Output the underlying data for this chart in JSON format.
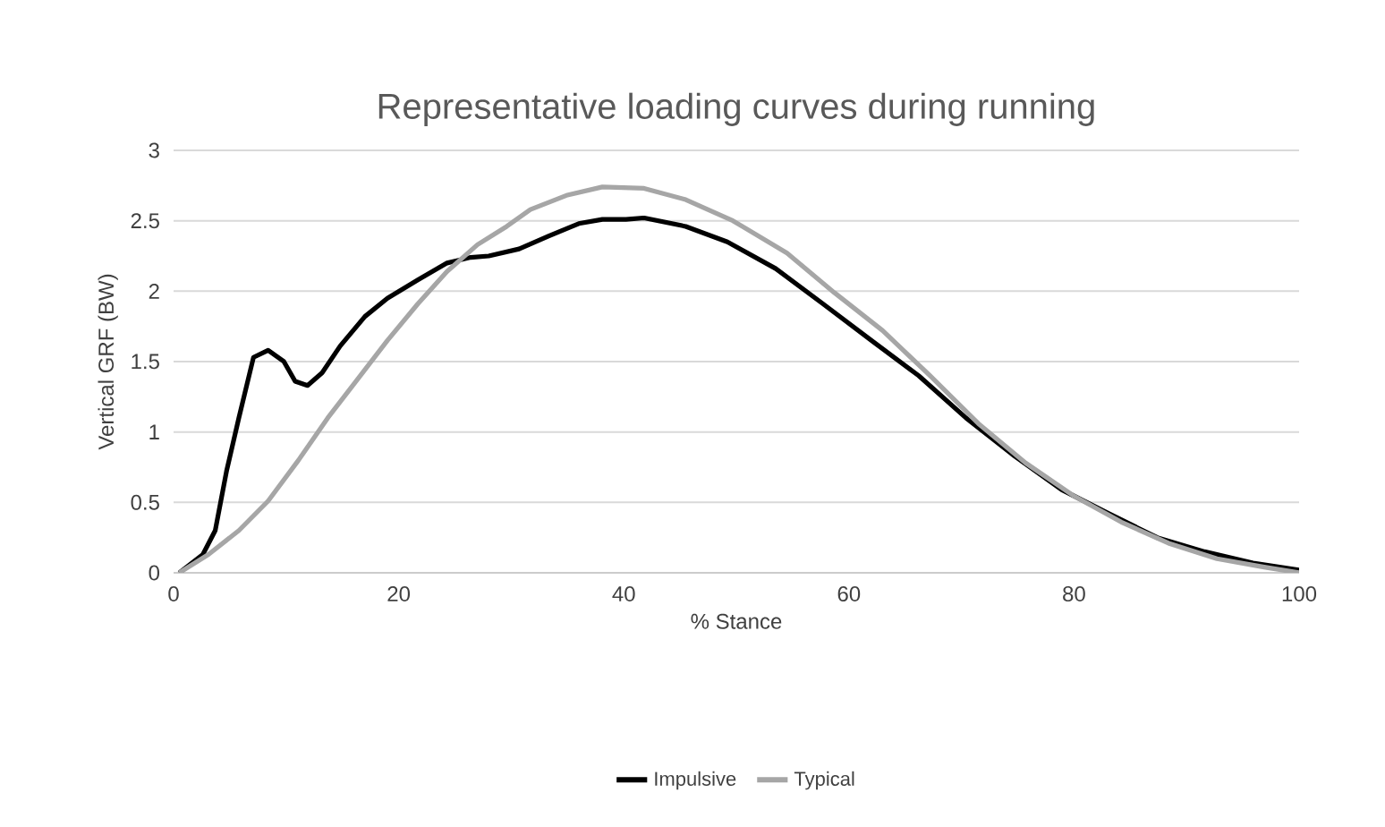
{
  "chart_data": {
    "type": "line",
    "title": "Representative loading curves during running",
    "xlabel": "% Stance",
    "ylabel": "Vertical GRF (BW)",
    "xlim": [
      0,
      100
    ],
    "ylim": [
      0,
      3
    ],
    "xticks": [
      0,
      20,
      40,
      60,
      80,
      100
    ],
    "yticks": [
      0,
      0.5,
      1,
      1.5,
      2,
      2.5,
      3
    ],
    "grid": "y",
    "legend": "bottom",
    "series": [
      {
        "name": "Impulsive",
        "color": "#000000",
        "x": [
          0.5,
          2.6,
          3.7,
          4.7,
          5.8,
          7.1,
          8.4,
          9.8,
          10.8,
          11.9,
          13.2,
          14.8,
          17.0,
          19.0,
          21.7,
          24.3,
          26.4,
          28.0,
          30.7,
          33.3,
          36.0,
          38.1,
          40.2,
          41.8,
          45.5,
          49.2,
          53.5,
          57.7,
          62.0,
          66.2,
          70.4,
          74.7,
          78.9,
          83.1,
          87.4,
          91.6,
          95.9,
          100
        ],
        "values": [
          0,
          0.13,
          0.3,
          0.72,
          1.1,
          1.53,
          1.58,
          1.5,
          1.36,
          1.33,
          1.42,
          1.61,
          1.82,
          1.95,
          2.08,
          2.2,
          2.24,
          2.25,
          2.3,
          2.39,
          2.48,
          2.51,
          2.51,
          2.52,
          2.46,
          2.35,
          2.16,
          1.91,
          1.65,
          1.4,
          1.1,
          0.83,
          0.59,
          0.42,
          0.25,
          0.15,
          0.07,
          0.02
        ]
      },
      {
        "name": "Typical",
        "color": "#a6a6a6",
        "x": [
          0.5,
          3.1,
          5.8,
          8.4,
          11.1,
          13.7,
          16.4,
          19.0,
          21.7,
          24.3,
          27.0,
          29.6,
          31.7,
          34.9,
          38.1,
          41.8,
          45.5,
          49.7,
          54.5,
          58.7,
          63.0,
          67.2,
          71.5,
          75.7,
          79.9,
          84.2,
          88.4,
          92.7,
          96.9,
          100
        ],
        "values": [
          0,
          0.13,
          0.3,
          0.51,
          0.8,
          1.1,
          1.38,
          1.65,
          1.91,
          2.14,
          2.33,
          2.46,
          2.58,
          2.68,
          2.74,
          2.73,
          2.65,
          2.5,
          2.27,
          1.99,
          1.72,
          1.4,
          1.06,
          0.78,
          0.55,
          0.36,
          0.21,
          0.1,
          0.04,
          0
        ]
      }
    ]
  }
}
